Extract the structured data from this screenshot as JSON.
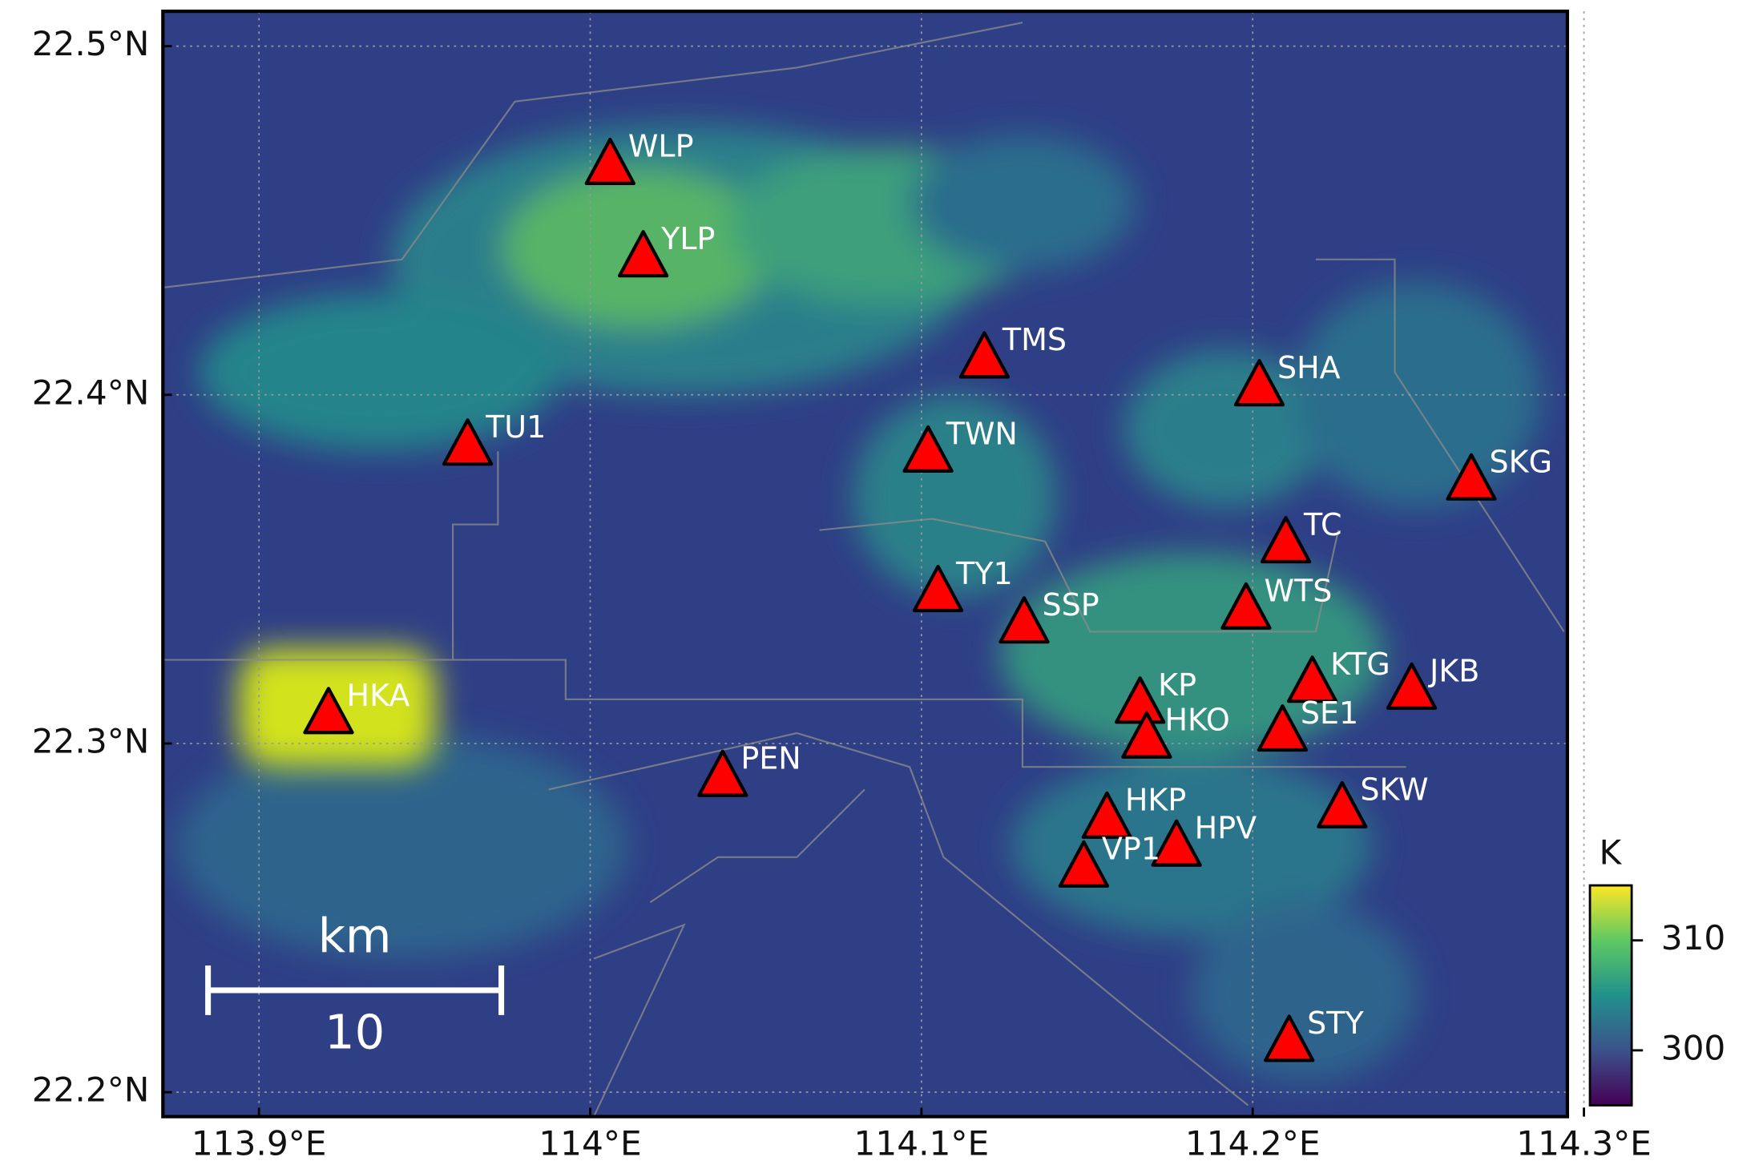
{
  "map": {
    "xlim": [
      113.871,
      114.295
    ],
    "ylim": [
      22.193,
      22.51
    ],
    "xticks": [
      {
        "value": 113.9,
        "label": "113.9°E"
      },
      {
        "value": 114.0,
        "label": "114°E"
      },
      {
        "value": 114.1,
        "label": "114.1°E"
      },
      {
        "value": 114.2,
        "label": "114.2°E"
      },
      {
        "value": 114.3,
        "label": "114.3°E"
      }
    ],
    "yticks": [
      {
        "value": 22.2,
        "label": "22.2°N"
      },
      {
        "value": 22.3,
        "label": "22.3°N"
      },
      {
        "value": 22.4,
        "label": "22.4°N"
      },
      {
        "value": 22.5,
        "label": "22.5°N"
      }
    ],
    "stations": [
      {
        "name": "WLP",
        "lon": 114.006,
        "lat": 22.4655
      },
      {
        "name": "YLP",
        "lon": 114.016,
        "lat": 22.439
      },
      {
        "name": "TMS",
        "lon": 114.119,
        "lat": 22.41
      },
      {
        "name": "SHA",
        "lon": 114.202,
        "lat": 22.402
      },
      {
        "name": "TU1",
        "lon": 113.963,
        "lat": 22.385
      },
      {
        "name": "TWN",
        "lon": 114.102,
        "lat": 22.383
      },
      {
        "name": "SKG",
        "lon": 114.266,
        "lat": 22.375
      },
      {
        "name": "TC",
        "lon": 114.21,
        "lat": 22.357
      },
      {
        "name": "TY1",
        "lon": 114.105,
        "lat": 22.343
      },
      {
        "name": "SSP",
        "lon": 114.131,
        "lat": 22.334
      },
      {
        "name": "WTS",
        "lon": 114.198,
        "lat": 22.338
      },
      {
        "name": "KTG",
        "lon": 114.218,
        "lat": 22.317
      },
      {
        "name": "JKB",
        "lon": 114.248,
        "lat": 22.315
      },
      {
        "name": "KP",
        "lon": 114.166,
        "lat": 22.311
      },
      {
        "name": "HKO",
        "lon": 114.168,
        "lat": 22.301
      },
      {
        "name": "SE1",
        "lon": 114.209,
        "lat": 22.303
      },
      {
        "name": "HKA",
        "lon": 113.921,
        "lat": 22.308
      },
      {
        "name": "PEN",
        "lon": 114.04,
        "lat": 22.29
      },
      {
        "name": "SKW",
        "lon": 114.227,
        "lat": 22.281
      },
      {
        "name": "HKP",
        "lon": 114.156,
        "lat": 22.278
      },
      {
        "name": "HPV",
        "lon": 114.177,
        "lat": 22.27
      },
      {
        "name": "VP1",
        "lon": 114.149,
        "lat": 22.264
      },
      {
        "name": "STY",
        "lon": 114.211,
        "lat": 22.214
      }
    ],
    "colorbar": {
      "label": "K",
      "lim": [
        295,
        315
      ],
      "ticks": [
        300,
        310
      ]
    },
    "scale_bar": {
      "label": "km",
      "value": 10
    }
  }
}
